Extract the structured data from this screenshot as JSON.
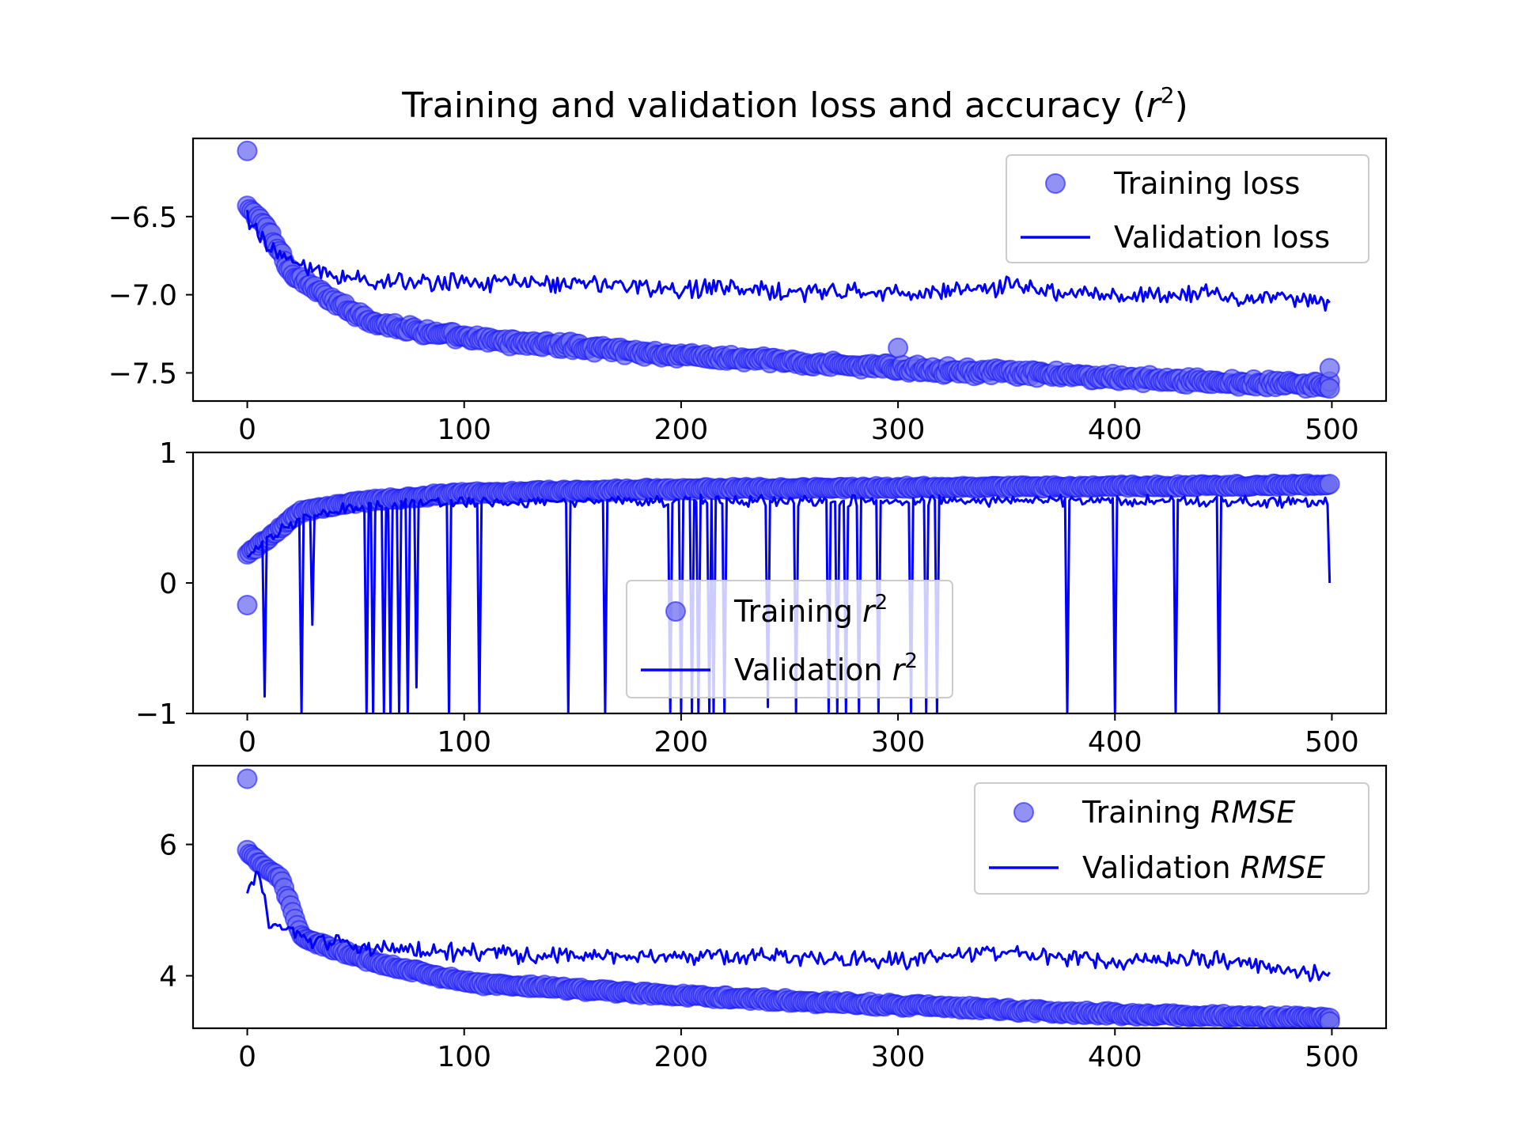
{
  "figure": {
    "title": "Training and validation loss and accuracy",
    "title_math": "r",
    "title_sup": "2",
    "title_close": ")",
    "title_open": "("
  },
  "colors": {
    "line": "#0000ff",
    "marker_fill": "#6e6ef0",
    "marker_edge": "#1a1aff"
  },
  "chart_data": [
    {
      "type": "scatter+line",
      "panel": "loss",
      "xlabel": "",
      "ylabel": "",
      "xlim": [
        -25,
        525
      ],
      "ylim": [
        -7.68,
        -6.0
      ],
      "xticks": [
        0,
        100,
        200,
        300,
        400,
        500
      ],
      "xtick_labels": [
        "0",
        "100",
        "200",
        "300",
        "400",
        "500"
      ],
      "yticks": [
        -6.5,
        -7.0,
        -7.5
      ],
      "ytick_labels": [
        "−6.5",
        "−7.0",
        "−7.5"
      ],
      "legend": {
        "placement": "upper-right",
        "entries": [
          {
            "kind": "marker",
            "label": "Training loss"
          },
          {
            "kind": "line",
            "label": "Validation loss"
          }
        ]
      },
      "series": [
        {
          "name": "Training loss",
          "style": "markers",
          "x_start": 0,
          "x_end": 499,
          "anchors": [
            [
              0,
              -6.45
            ],
            [
              5,
              -6.5
            ],
            [
              10,
              -6.6
            ],
            [
              20,
              -6.85
            ],
            [
              40,
              -7.05
            ],
            [
              60,
              -7.18
            ],
            [
              80,
              -7.23
            ],
            [
              100,
              -7.28
            ],
            [
              150,
              -7.33
            ],
            [
              200,
              -7.39
            ],
            [
              250,
              -7.43
            ],
            [
              300,
              -7.47
            ],
            [
              350,
              -7.5
            ],
            [
              400,
              -7.53
            ],
            [
              450,
              -7.56
            ],
            [
              499,
              -7.58
            ]
          ],
          "noise": 0.03,
          "outliers": [
            [
              0,
              -6.08
            ],
            [
              300,
              -7.34
            ],
            [
              499,
              -7.47
            ],
            [
              499,
              -7.6
            ]
          ]
        },
        {
          "name": "Validation loss",
          "style": "line",
          "x_start": 0,
          "x_end": 499,
          "anchors": [
            [
              0,
              -6.5
            ],
            [
              10,
              -6.7
            ],
            [
              30,
              -6.85
            ],
            [
              60,
              -6.92
            ],
            [
              100,
              -6.92
            ],
            [
              150,
              -6.93
            ],
            [
              200,
              -6.96
            ],
            [
              250,
              -6.98
            ],
            [
              300,
              -6.99
            ],
            [
              350,
              -6.95
            ],
            [
              400,
              -7.0
            ],
            [
              450,
              -7.0
            ],
            [
              499,
              -7.05
            ]
          ],
          "noise": 0.07
        }
      ]
    },
    {
      "type": "scatter+line",
      "panel": "r2",
      "xlabel": "",
      "ylabel": "",
      "xlim": [
        -25,
        525
      ],
      "ylim": [
        -1.0,
        1.0
      ],
      "xticks": [
        0,
        100,
        200,
        300,
        400,
        500
      ],
      "xtick_labels": [
        "0",
        "100",
        "200",
        "300",
        "400",
        "500"
      ],
      "yticks": [
        1,
        0,
        -1
      ],
      "ytick_labels": [
        "1",
        "0",
        "−1"
      ],
      "legend": {
        "placement": "lower-center",
        "entries": [
          {
            "kind": "marker",
            "label": "Training ",
            "math": "r",
            "sup": "2"
          },
          {
            "kind": "line",
            "label": "Validation ",
            "math": "r",
            "sup": "2"
          }
        ]
      },
      "series": [
        {
          "name": "Training r²",
          "style": "markers",
          "x_start": 0,
          "x_end": 499,
          "anchors": [
            [
              0,
              0.22
            ],
            [
              10,
              0.35
            ],
            [
              25,
              0.55
            ],
            [
              50,
              0.62
            ],
            [
              100,
              0.69
            ],
            [
              200,
              0.72
            ],
            [
              300,
              0.73
            ],
            [
              400,
              0.74
            ],
            [
              499,
              0.75
            ]
          ],
          "noise": 0.015,
          "outliers": [
            [
              0,
              -0.17
            ]
          ]
        },
        {
          "name": "Validation r²",
          "style": "line",
          "x_start": 0,
          "x_end": 499,
          "anchors": [
            [
              0,
              0.2
            ],
            [
              10,
              0.35
            ],
            [
              25,
              0.5
            ],
            [
              50,
              0.58
            ],
            [
              100,
              0.62
            ],
            [
              200,
              0.63
            ],
            [
              300,
              0.63
            ],
            [
              400,
              0.63
            ],
            [
              498,
              0.62
            ]
          ],
          "noise": 0.05,
          "dips": [
            [
              8,
              -0.87
            ],
            [
              25,
              -1.0
            ],
            [
              30,
              -0.32
            ],
            [
              55,
              -1.0
            ],
            [
              58,
              -1.0
            ],
            [
              63,
              -1.0
            ],
            [
              66,
              -1.0
            ],
            [
              70,
              -1.0
            ],
            [
              74,
              -1.0
            ],
            [
              78,
              -0.8
            ],
            [
              93,
              -1.0
            ],
            [
              107,
              -1.0
            ],
            [
              148,
              -1.0
            ],
            [
              165,
              -1.0
            ],
            [
              195,
              -1.0
            ],
            [
              200,
              -1.0
            ],
            [
              205,
              -1.0
            ],
            [
              208,
              -1.0
            ],
            [
              213,
              -1.0
            ],
            [
              215,
              -1.0
            ],
            [
              220,
              -1.0
            ],
            [
              240,
              -0.95
            ],
            [
              253,
              -1.0
            ],
            [
              268,
              -1.0
            ],
            [
              272,
              -1.0
            ],
            [
              276,
              -1.0
            ],
            [
              282,
              -1.0
            ],
            [
              291,
              -1.0
            ],
            [
              306,
              -1.0
            ],
            [
              313,
              -1.0
            ],
            [
              318,
              -1.0
            ],
            [
              378,
              -1.0
            ],
            [
              400,
              -1.0
            ],
            [
              428,
              -1.0
            ],
            [
              448,
              -1.0
            ],
            [
              499,
              0.0
            ]
          ]
        }
      ]
    },
    {
      "type": "scatter+line",
      "panel": "rmse",
      "xlabel": "",
      "ylabel": "",
      "xlim": [
        -25,
        525
      ],
      "ylim": [
        3.2,
        7.2
      ],
      "xticks": [
        0,
        100,
        200,
        300,
        400,
        500
      ],
      "xtick_labels": [
        "0",
        "100",
        "200",
        "300",
        "400",
        "500"
      ],
      "yticks": [
        6,
        4
      ],
      "ytick_labels": [
        "6",
        "4"
      ],
      "legend": {
        "placement": "upper-right",
        "entries": [
          {
            "kind": "marker",
            "label": "Training ",
            "math": "RMSE"
          },
          {
            "kind": "line",
            "label": "Validation ",
            "math": "RMSE"
          }
        ]
      },
      "series": [
        {
          "name": "Training RMSE",
          "style": "markers",
          "x_start": 0,
          "x_end": 499,
          "anchors": [
            [
              0,
              5.9
            ],
            [
              5,
              5.75
            ],
            [
              15,
              5.5
            ],
            [
              25,
              4.6
            ],
            [
              40,
              4.4
            ],
            [
              60,
              4.2
            ],
            [
              80,
              4.05
            ],
            [
              100,
              3.9
            ],
            [
              150,
              3.8
            ],
            [
              200,
              3.7
            ],
            [
              250,
              3.62
            ],
            [
              300,
              3.55
            ],
            [
              350,
              3.48
            ],
            [
              400,
              3.42
            ],
            [
              450,
              3.38
            ],
            [
              499,
              3.35
            ]
          ],
          "noise": 0.04,
          "outliers": [
            [
              0,
              7.0
            ],
            [
              499,
              3.3
            ]
          ]
        },
        {
          "name": "Validation RMSE",
          "style": "line",
          "x_start": 0,
          "x_end": 499,
          "anchors": [
            [
              0,
              5.2
            ],
            [
              5,
              5.6
            ],
            [
              10,
              4.8
            ],
            [
              30,
              4.55
            ],
            [
              60,
              4.4
            ],
            [
              100,
              4.35
            ],
            [
              150,
              4.3
            ],
            [
              200,
              4.3
            ],
            [
              250,
              4.28
            ],
            [
              300,
              4.25
            ],
            [
              350,
              4.35
            ],
            [
              400,
              4.22
            ],
            [
              450,
              4.25
            ],
            [
              499,
              4.0
            ]
          ],
          "noise": 0.16
        }
      ]
    }
  ]
}
